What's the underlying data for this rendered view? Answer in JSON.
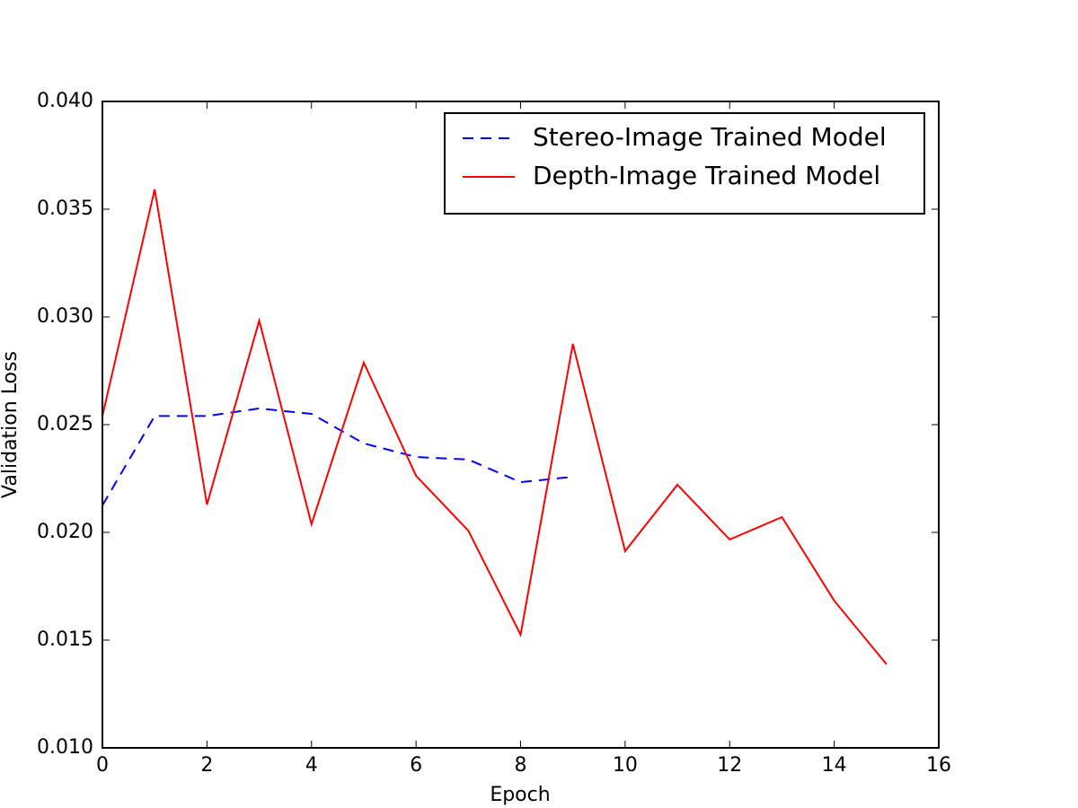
{
  "chart_data": {
    "type": "line",
    "xlabel": "Epoch",
    "ylabel": "Validation Loss",
    "xlim": [
      0,
      16
    ],
    "xticks": [
      0,
      2,
      4,
      6,
      8,
      10,
      12,
      14,
      16
    ],
    "ylim": [
      0.01,
      0.04
    ],
    "yticks": [
      {
        "value": 0.01,
        "label": "0.010"
      },
      {
        "value": 0.015,
        "label": "0.015"
      },
      {
        "value": 0.02,
        "label": "0.020"
      },
      {
        "value": 0.025,
        "label": "0.025"
      },
      {
        "value": 0.03,
        "label": "0.030"
      },
      {
        "value": 0.035,
        "label": "0.035"
      },
      {
        "value": 0.04,
        "label": "0.040"
      }
    ],
    "legend": "upper right",
    "series": [
      {
        "name": "Stereo-Image Trained Model",
        "color": "#0000ff",
        "style": "dashed",
        "x": [
          0,
          1,
          2,
          3,
          4,
          5,
          6,
          7,
          8,
          9
        ],
        "values": [
          0.02125,
          0.0254,
          0.0254,
          0.02575,
          0.0255,
          0.02413,
          0.0235,
          0.02338,
          0.02233,
          0.02258
        ]
      },
      {
        "name": "Depth-Image Trained Model",
        "color": "#ff0000",
        "style": "solid",
        "x": [
          0,
          1,
          2,
          3,
          4,
          5,
          6,
          7,
          8,
          9,
          10,
          11,
          12,
          13,
          14,
          15
        ],
        "values": [
          0.0254,
          0.03592,
          0.02129,
          0.02983,
          0.02038,
          0.02788,
          0.02263,
          0.02008,
          0.01525,
          0.02875,
          0.01913,
          0.02221,
          0.01967,
          0.02071,
          0.01683,
          0.01388
        ]
      }
    ]
  }
}
